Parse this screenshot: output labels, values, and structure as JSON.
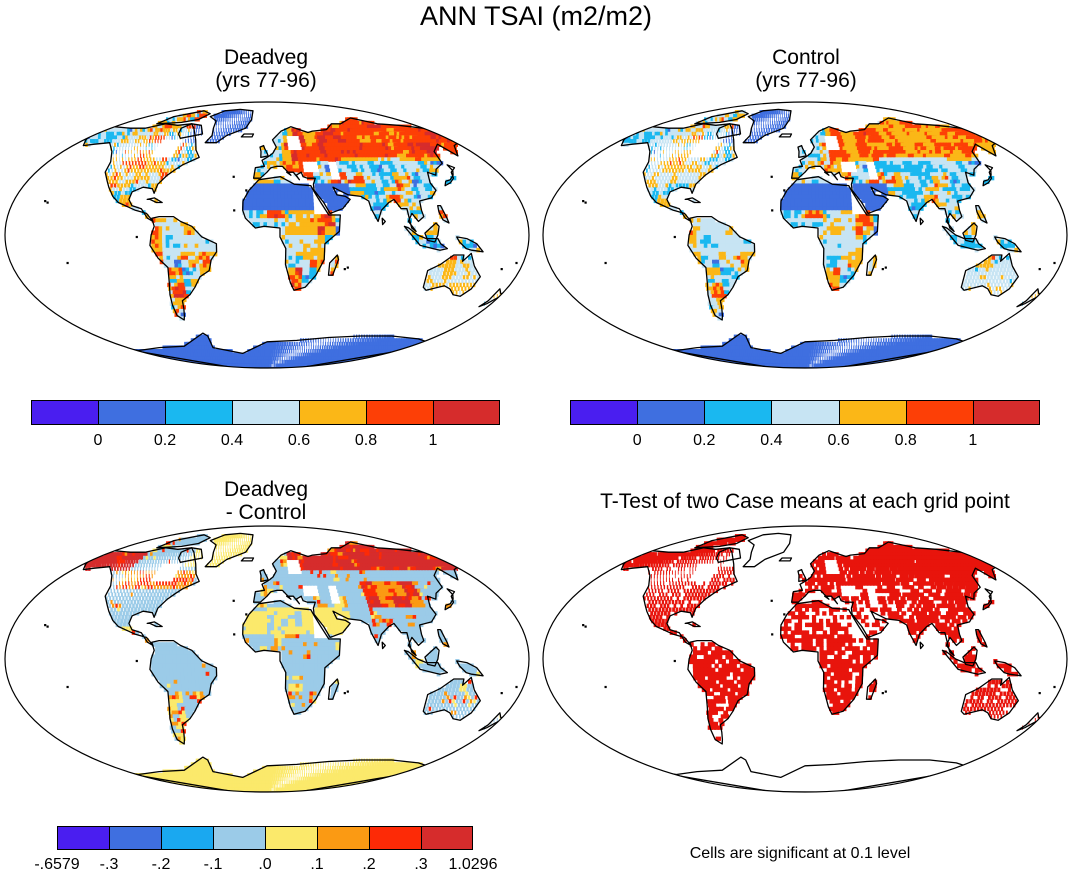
{
  "title": "ANN TSAI (m2/m2)",
  "panels": [
    {
      "id": "deadveg",
      "title_line1": "Deadveg",
      "title_line2": "(yrs 77-96)"
    },
    {
      "id": "control",
      "title_line1": "Control",
      "title_line2": "(yrs 77-96)"
    },
    {
      "id": "diff",
      "title_line1": "Deadveg",
      "title_line2": "- Control"
    },
    {
      "id": "ttest",
      "title_line1": "T-Test of two Case means at each grid point",
      "title_line2": ""
    }
  ],
  "colorbars": {
    "abs": {
      "colors": [
        "#4a1ef0",
        "#3f6fe0",
        "#1ab8f0",
        "#c7e4f3",
        "#fbb717",
        "#fd3f06",
        "#d62c2c"
      ],
      "labels": [
        "0",
        "0.2",
        "0.4",
        "0.6",
        "0.8",
        "1"
      ]
    },
    "diff": {
      "colors": [
        "#4a1ef0",
        "#3f6fe0",
        "#1aa8f0",
        "#9bcbe8",
        "#fbe96b",
        "#fb9a13",
        "#fd2a06",
        "#d62c2c"
      ],
      "labels": [
        "-.6579",
        "-.3",
        "-.2",
        "-.1",
        ".0",
        ".1",
        ".2",
        ".3",
        "1.0296"
      ]
    }
  },
  "footnote": "Cells are significant at 0.1 level",
  "map_colors": {
    "ocean": "#ffffff",
    "ttest_sig": "#e8140c",
    "coast": "#000000"
  }
}
